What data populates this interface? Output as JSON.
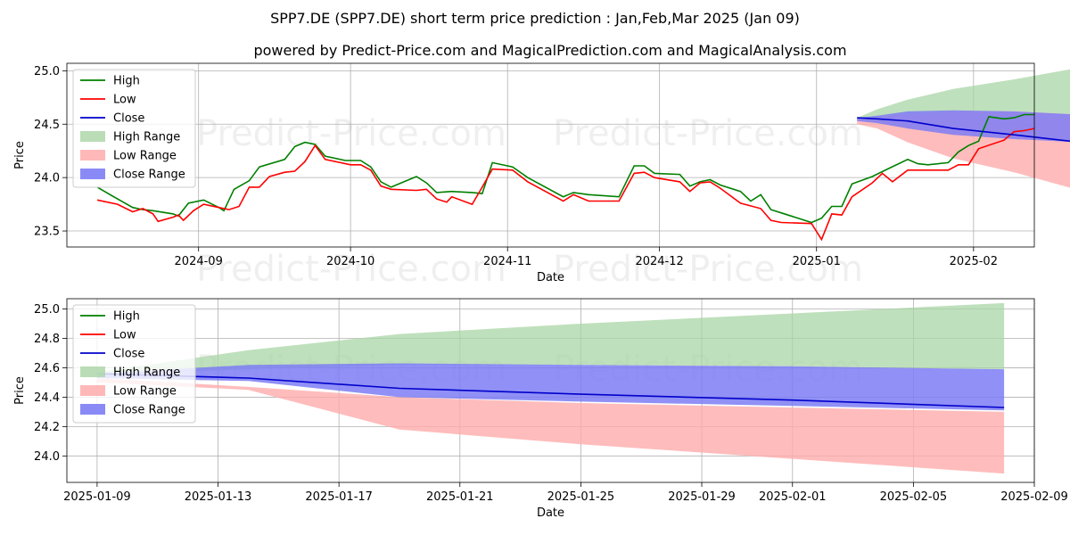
{
  "chart_data": [
    {
      "type": "line",
      "title": "SPP7.DE (SPP7.DE) short term price prediction : Jan,Feb,Mar 2025 (Jan 09)",
      "subtitle": "powered by Predict-Price.com and MagicalPrediction.com and MagicalAnalysis.com",
      "watermark": "Predict-Price.com",
      "xlabel": "Date",
      "ylabel": "Price",
      "grid": true,
      "legend_position": "top-left",
      "xlim": [
        "2024-08-06",
        "2025-02-13"
      ],
      "ylim": [
        23.35,
        25.07
      ],
      "xticks": [
        "2024-09-01",
        "2024-10-01",
        "2024-11-01",
        "2024-12-01",
        "2025-01-01",
        "2025-02-01"
      ],
      "xtick_labels": [
        "2024-09",
        "2024-10",
        "2024-11",
        "2024-12",
        "2025-01",
        "2025-02"
      ],
      "yticks": [
        23.5,
        24.0,
        24.5,
        25.0
      ],
      "ytick_labels": [
        "23.5",
        "24.0",
        "24.5",
        "25.0"
      ],
      "series": [
        {
          "name": "High",
          "color": "#008000",
          "points": [
            [
              "2024-08-12",
              23.91
            ],
            [
              "2024-08-16",
              23.8
            ],
            [
              "2024-08-19",
              23.72
            ],
            [
              "2024-08-21",
              23.7
            ],
            [
              "2024-08-23",
              23.69
            ],
            [
              "2024-08-27",
              23.66
            ],
            [
              "2024-08-28",
              23.64
            ],
            [
              "2024-08-30",
              23.76
            ],
            [
              "2024-09-02",
              23.79
            ],
            [
              "2024-09-05",
              23.72
            ],
            [
              "2024-09-06",
              23.69
            ],
            [
              "2024-09-08",
              23.89
            ],
            [
              "2024-09-11",
              23.97
            ],
            [
              "2024-09-13",
              24.1
            ],
            [
              "2024-09-18",
              24.17
            ],
            [
              "2024-09-20",
              24.29
            ],
            [
              "2024-09-22",
              24.33
            ],
            [
              "2024-09-24",
              24.31
            ],
            [
              "2024-09-26",
              24.2
            ],
            [
              "2024-09-30",
              24.16
            ],
            [
              "2024-10-03",
              24.16
            ],
            [
              "2024-10-05",
              24.1
            ],
            [
              "2024-10-07",
              23.96
            ],
            [
              "2024-10-09",
              23.91
            ],
            [
              "2024-10-14",
              24.01
            ],
            [
              "2024-10-16",
              23.95
            ],
            [
              "2024-10-18",
              23.86
            ],
            [
              "2024-10-21",
              23.87
            ],
            [
              "2024-10-25",
              23.86
            ],
            [
              "2024-10-27",
              23.85
            ],
            [
              "2024-10-29",
              24.14
            ],
            [
              "2024-11-02",
              24.1
            ],
            [
              "2024-11-05",
              24.0
            ],
            [
              "2024-11-12",
              23.82
            ],
            [
              "2024-11-14",
              23.86
            ],
            [
              "2024-11-17",
              23.84
            ],
            [
              "2024-11-23",
              23.82
            ],
            [
              "2024-11-26",
              24.11
            ],
            [
              "2024-11-28",
              24.11
            ],
            [
              "2024-11-30",
              24.04
            ],
            [
              "2024-12-05",
              24.03
            ],
            [
              "2024-12-07",
              23.92
            ],
            [
              "2024-12-09",
              23.96
            ],
            [
              "2024-12-11",
              23.98
            ],
            [
              "2024-12-13",
              23.93
            ],
            [
              "2024-12-17",
              23.87
            ],
            [
              "2024-12-19",
              23.78
            ],
            [
              "2024-12-21",
              23.84
            ],
            [
              "2024-12-23",
              23.7
            ],
            [
              "2024-12-25",
              23.67
            ],
            [
              "2024-12-31",
              23.58
            ],
            [
              "2025-01-02",
              23.62
            ],
            [
              "2025-01-04",
              23.73
            ],
            [
              "2025-01-06",
              23.73
            ],
            [
              "2025-01-08",
              23.94
            ],
            [
              "2025-01-12",
              24.01
            ],
            [
              "2025-01-15",
              24.08
            ],
            [
              "2025-01-19",
              24.17
            ],
            [
              "2025-01-21",
              24.13
            ],
            [
              "2025-01-23",
              24.12
            ],
            [
              "2025-01-27",
              24.14
            ],
            [
              "2025-01-29",
              24.24
            ],
            [
              "2025-01-31",
              24.3
            ],
            [
              "2025-02-02",
              24.34
            ],
            [
              "2025-02-04",
              24.57
            ],
            [
              "2025-02-07",
              24.55
            ],
            [
              "2025-02-09",
              24.56
            ],
            [
              "2025-02-11",
              24.59
            ],
            [
              "2025-02-13",
              24.59
            ]
          ]
        },
        {
          "name": "Low",
          "color": "#ff0000",
          "points": [
            [
              "2024-08-12",
              23.79
            ],
            [
              "2024-08-16",
              23.75
            ],
            [
              "2024-08-19",
              23.68
            ],
            [
              "2024-08-21",
              23.71
            ],
            [
              "2024-08-23",
              23.66
            ],
            [
              "2024-08-24",
              23.59
            ],
            [
              "2024-08-27",
              23.63
            ],
            [
              "2024-08-28",
              23.65
            ],
            [
              "2024-08-29",
              23.6
            ],
            [
              "2024-08-31",
              23.69
            ],
            [
              "2024-09-02",
              23.75
            ],
            [
              "2024-09-05",
              23.72
            ],
            [
              "2024-09-07",
              23.7
            ],
            [
              "2024-09-09",
              23.73
            ],
            [
              "2024-09-11",
              23.91
            ],
            [
              "2024-09-13",
              23.91
            ],
            [
              "2024-09-15",
              24.01
            ],
            [
              "2024-09-18",
              24.05
            ],
            [
              "2024-09-20",
              24.06
            ],
            [
              "2024-09-22",
              24.15
            ],
            [
              "2024-09-24",
              24.3
            ],
            [
              "2024-09-26",
              24.17
            ],
            [
              "2024-10-01",
              24.12
            ],
            [
              "2024-10-03",
              24.12
            ],
            [
              "2024-10-05",
              24.07
            ],
            [
              "2024-10-07",
              23.92
            ],
            [
              "2024-10-09",
              23.89
            ],
            [
              "2024-10-14",
              23.88
            ],
            [
              "2024-10-16",
              23.89
            ],
            [
              "2024-10-18",
              23.8
            ],
            [
              "2024-10-20",
              23.77
            ],
            [
              "2024-10-21",
              23.82
            ],
            [
              "2024-10-25",
              23.75
            ],
            [
              "2024-10-27",
              23.91
            ],
            [
              "2024-10-29",
              24.08
            ],
            [
              "2024-11-02",
              24.07
            ],
            [
              "2024-11-05",
              23.96
            ],
            [
              "2024-11-12",
              23.78
            ],
            [
              "2024-11-14",
              23.84
            ],
            [
              "2024-11-17",
              23.78
            ],
            [
              "2024-11-23",
              23.78
            ],
            [
              "2024-11-26",
              24.04
            ],
            [
              "2024-11-28",
              24.05
            ],
            [
              "2024-11-30",
              24.0
            ],
            [
              "2024-12-05",
              23.96
            ],
            [
              "2024-12-07",
              23.87
            ],
            [
              "2024-12-09",
              23.95
            ],
            [
              "2024-12-11",
              23.96
            ],
            [
              "2024-12-13",
              23.9
            ],
            [
              "2024-12-17",
              23.76
            ],
            [
              "2024-12-21",
              23.71
            ],
            [
              "2024-12-23",
              23.6
            ],
            [
              "2024-12-25",
              23.58
            ],
            [
              "2024-12-31",
              23.57
            ],
            [
              "2025-01-02",
              23.42
            ],
            [
              "2025-01-04",
              23.66
            ],
            [
              "2025-01-06",
              23.65
            ],
            [
              "2025-01-08",
              23.82
            ],
            [
              "2025-01-12",
              23.95
            ],
            [
              "2025-01-14",
              24.04
            ],
            [
              "2025-01-16",
              23.96
            ],
            [
              "2025-01-19",
              24.07
            ],
            [
              "2025-01-21",
              24.07
            ],
            [
              "2025-01-23",
              24.07
            ],
            [
              "2025-01-27",
              24.07
            ],
            [
              "2025-01-29",
              24.12
            ],
            [
              "2025-01-31",
              24.12
            ],
            [
              "2025-02-02",
              24.27
            ],
            [
              "2025-02-07",
              24.35
            ],
            [
              "2025-02-09",
              24.43
            ],
            [
              "2025-02-11",
              24.44
            ],
            [
              "2025-02-13",
              24.46
            ]
          ]
        }
      ]
    },
    {
      "type": "line",
      "xlabel": "Date",
      "ylabel": "Price",
      "grid": true,
      "legend_position": "top-left",
      "xlim": [
        "2025-01-08",
        "2025-02-09"
      ],
      "ylim": [
        23.82,
        25.07
      ],
      "xticks": [
        "2025-01-09",
        "2025-01-13",
        "2025-01-17",
        "2025-01-21",
        "2025-01-25",
        "2025-01-29",
        "2025-02-01",
        "2025-02-05",
        "2025-02-09"
      ],
      "xtick_labels": [
        "2025-01-09",
        "2025-01-13",
        "2025-01-17",
        "2025-01-21",
        "2025-01-25",
        "2025-01-29",
        "2025-02-01",
        "2025-02-05",
        "2025-02-09"
      ],
      "yticks": [
        24.0,
        24.2,
        24.4,
        24.6,
        24.8,
        25.0
      ],
      "ytick_labels": [
        "24.0",
        "24.2",
        "24.4",
        "24.6",
        "24.8",
        "25.0"
      ],
      "legend": [
        "High",
        "Low",
        "Close",
        "High Range",
        "Low Range",
        "Close Range"
      ]
    }
  ]
}
